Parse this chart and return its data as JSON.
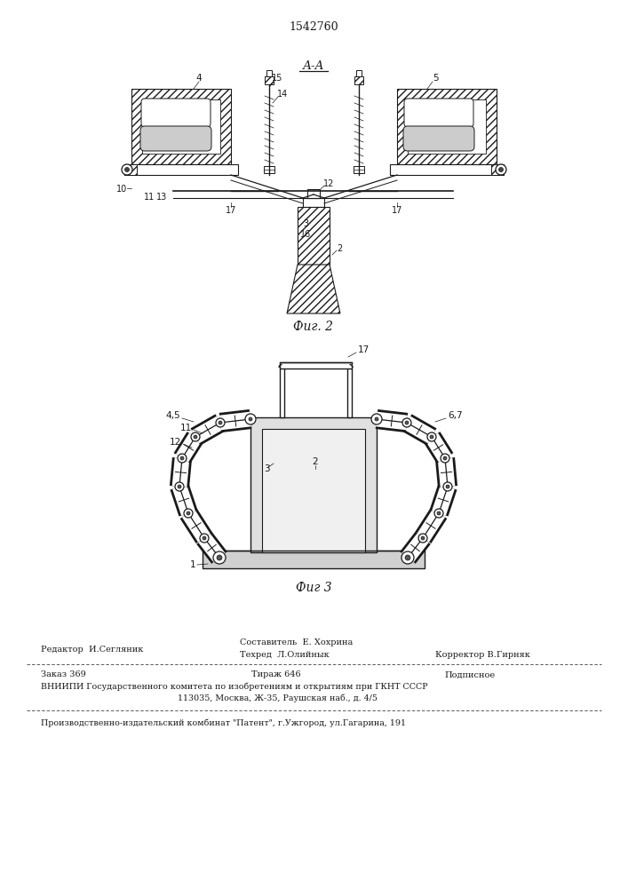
{
  "patent_number": "1542760",
  "fig2_label": "Фиг. 2",
  "fig3_label": "Фиг 3",
  "section_label": "А-А",
  "line_color": "#1a1a1a",
  "footer_editor": "Редактор  И.Сегляник",
  "footer_author": "Составитель  Е. Хохрина",
  "footer_tech": "Техред  Л.Олийнык",
  "footer_corr": "Корректор В.Гирняк",
  "footer_order": "Заказ 369",
  "footer_print": "Тираж 646",
  "footer_sign": "Подписное",
  "footer_vniipи": "ВНИИПИ Государственного комитета по изобретениям и открытиям при ГКНТ СССР",
  "footer_addr": "113035, Москва, Ж-35, Раушская наб., д. 4/5",
  "footer_plant": "Производственно-издательский комбинат \"Патент\", г.Ужгород, ул.Гагарина, 191"
}
